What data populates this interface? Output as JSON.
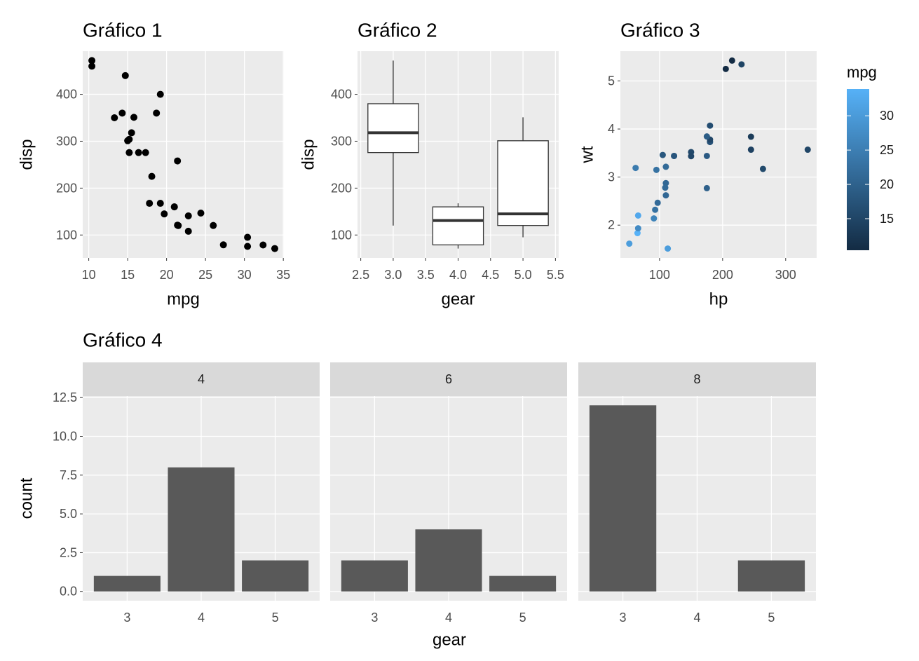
{
  "chart_data": [
    {
      "type": "scatter",
      "title": "Gráfico 1",
      "xlabel": "mpg",
      "ylabel": "disp",
      "color": "#000000",
      "x": [
        21,
        21,
        22.8,
        21.4,
        18.7,
        18.1,
        14.3,
        24.4,
        22.8,
        19.2,
        17.8,
        16.4,
        17.3,
        15.2,
        10.4,
        10.4,
        14.7,
        32.4,
        30.4,
        33.9,
        21.5,
        15.5,
        15.2,
        13.3,
        19.2,
        27.3,
        26,
        30.4,
        15.8,
        19.7,
        15,
        21.4
      ],
      "y": [
        160,
        160,
        108,
        258,
        360,
        225,
        360,
        146.7,
        140.8,
        167.6,
        167.6,
        275.8,
        275.8,
        275.8,
        472,
        460,
        440,
        78.7,
        75.7,
        71.1,
        120.1,
        318,
        304,
        350,
        400,
        79,
        120.3,
        95.1,
        351,
        145,
        301,
        121
      ],
      "xlim": [
        9.225,
        35.075
      ],
      "xticks": [
        10,
        15,
        20,
        25,
        30,
        35
      ],
      "ylim": [
        51.055,
        492.045
      ],
      "yticks": [
        100,
        200,
        300,
        400
      ],
      "grid": true
    },
    {
      "type": "box",
      "title": "Gráfico 2",
      "xlabel": "gear",
      "ylabel": "disp",
      "x": [
        3,
        4,
        5
      ],
      "min": [
        120.1,
        71.1,
        95.1
      ],
      "q1": [
        275.8,
        78.925,
        120.3
      ],
      "median": [
        318,
        130.9,
        145
      ],
      "q3": [
        380,
        160,
        301
      ],
      "max": [
        472,
        167.6,
        351
      ],
      "xlim": [
        2.45,
        5.55
      ],
      "xticks": [
        2.5,
        {
          "value": 3,
          "label": "3.0"
        },
        3.5,
        {
          "value": 4,
          "label": "4.0"
        },
        4.5,
        {
          "value": 5,
          "label": "5.0"
        },
        5.5
      ],
      "ylim": [
        51.055,
        492.045
      ],
      "yticks": [
        100,
        200,
        300,
        400
      ],
      "grid": true
    },
    {
      "type": "scatter",
      "title": "Gráfico 3",
      "xlabel": "hp",
      "ylabel": "wt",
      "x": [
        110,
        110,
        93,
        110,
        175,
        105,
        245,
        62,
        95,
        123,
        123,
        180,
        180,
        180,
        205,
        215,
        230,
        66,
        52,
        65,
        97,
        150,
        150,
        245,
        175,
        66,
        91,
        113,
        264,
        175,
        335,
        109
      ],
      "y": [
        2.62,
        2.875,
        2.32,
        3.215,
        3.44,
        3.46,
        3.57,
        3.19,
        3.15,
        3.44,
        3.44,
        4.07,
        3.73,
        3.78,
        5.25,
        5.424,
        5.345,
        2.2,
        1.615,
        1.835,
        2.465,
        3.52,
        3.435,
        3.84,
        3.845,
        1.935,
        2.14,
        1.513,
        3.17,
        2.77,
        3.57,
        2.78
      ],
      "color_values": [
        21,
        21,
        22.8,
        21.4,
        18.7,
        18.1,
        14.3,
        24.4,
        22.8,
        19.2,
        17.8,
        16.4,
        17.3,
        15.2,
        10.4,
        10.4,
        14.7,
        32.4,
        30.4,
        33.9,
        21.5,
        15.5,
        15.2,
        13.3,
        19.2,
        27.3,
        26,
        30.4,
        15.8,
        19.7,
        15,
        21.4
      ],
      "colorbar": {
        "title": "mpg",
        "low": "#132B43",
        "high": "#56B1F7",
        "lim": [
          10.4,
          33.9
        ],
        "ticks": [
          15,
          20,
          25,
          30
        ]
      },
      "xlim": [
        37.85,
        349.15
      ],
      "xticks": [
        100,
        200,
        300
      ],
      "ylim": [
        1.31745,
        5.61955
      ],
      "yticks": [
        2,
        3,
        4,
        5
      ],
      "grid": true
    },
    {
      "type": "facet_bar",
      "title": "Gráfico 4",
      "xlabel": "gear",
      "ylabel": "count",
      "color": "#595959",
      "categories": [
        "3",
        "4",
        "5"
      ],
      "facets": [
        {
          "name": "4",
          "values": [
            1,
            8,
            2
          ]
        },
        {
          "name": "6",
          "values": [
            2,
            4,
            1
          ]
        },
        {
          "name": "8",
          "values": [
            12,
            0,
            2
          ]
        }
      ],
      "ylim": [
        -0.6,
        12.6
      ],
      "yticks": [
        {
          "value": 0,
          "label": "0.0"
        },
        2.5,
        {
          "value": 5,
          "label": "5.0"
        },
        7.5,
        {
          "value": 10,
          "label": "10.0"
        },
        12.5
      ],
      "grid": true
    }
  ]
}
